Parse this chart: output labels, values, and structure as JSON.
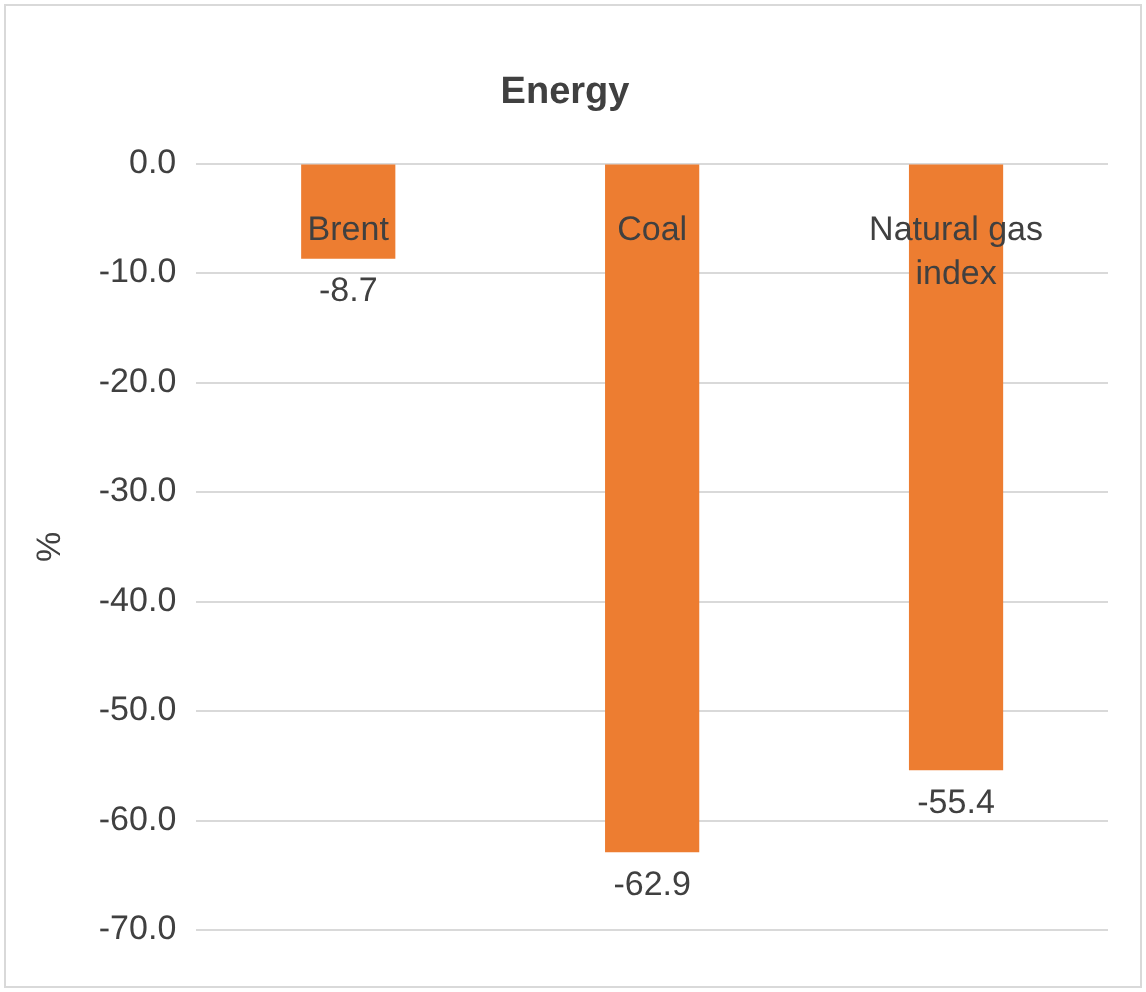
{
  "chart_data": {
    "type": "bar",
    "title": "Energy",
    "ylabel": "%",
    "categories": [
      "Brent",
      "Coal",
      "Natural gas index"
    ],
    "values": [
      -8.7,
      -62.9,
      -55.4
    ],
    "color": "#ed7d31",
    "ylim": [
      -70,
      0
    ],
    "yticks": [
      {
        "value": 0,
        "label": "0.0"
      },
      {
        "value": -10,
        "label": "-10.0"
      },
      {
        "value": -20,
        "label": "-20.0"
      },
      {
        "value": -30,
        "label": "-30.0"
      },
      {
        "value": -40,
        "label": "-40.0"
      },
      {
        "value": -50,
        "label": "-50.0"
      },
      {
        "value": -60,
        "label": "-60.0"
      },
      {
        "value": -70,
        "label": "-70.0"
      }
    ],
    "grid": "y",
    "legend": false,
    "data_labels": true
  }
}
